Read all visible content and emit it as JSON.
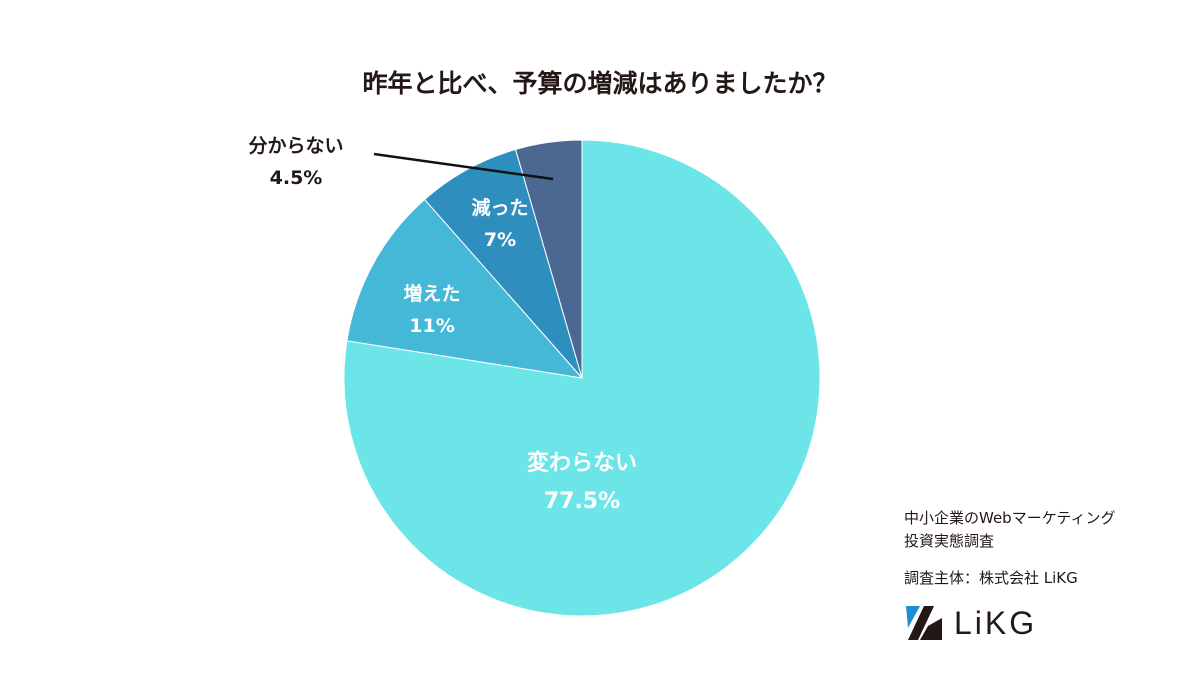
{
  "chart_data": {
    "type": "pie",
    "title": "昨年と比べ、予算の増減はありましたか？",
    "start": "12 o'clock, clockwise",
    "slices": [
      {
        "label": "変わらない",
        "value": 77.5,
        "display": "77.5%",
        "color": "#6ce5e8",
        "label_color": "#ffffff"
      },
      {
        "label": "増えた",
        "value": 11,
        "display": "11%",
        "color": "#44b8d6",
        "label_color": "#ffffff"
      },
      {
        "label": "減った",
        "value": 7,
        "display": "7%",
        "color": "#2e8fbe",
        "label_color": "#ffffff"
      },
      {
        "label": "分からない",
        "value": 4.5,
        "display": "4.5%",
        "color": "#4b6892",
        "label_color": "#231815"
      }
    ]
  },
  "credit": {
    "survey_line1": "中小企業のWebマーケティング",
    "survey_line2": "投資実態調査",
    "sponsor": "調査主体：株式会社 LiKG",
    "logo_text": "LiKG"
  }
}
